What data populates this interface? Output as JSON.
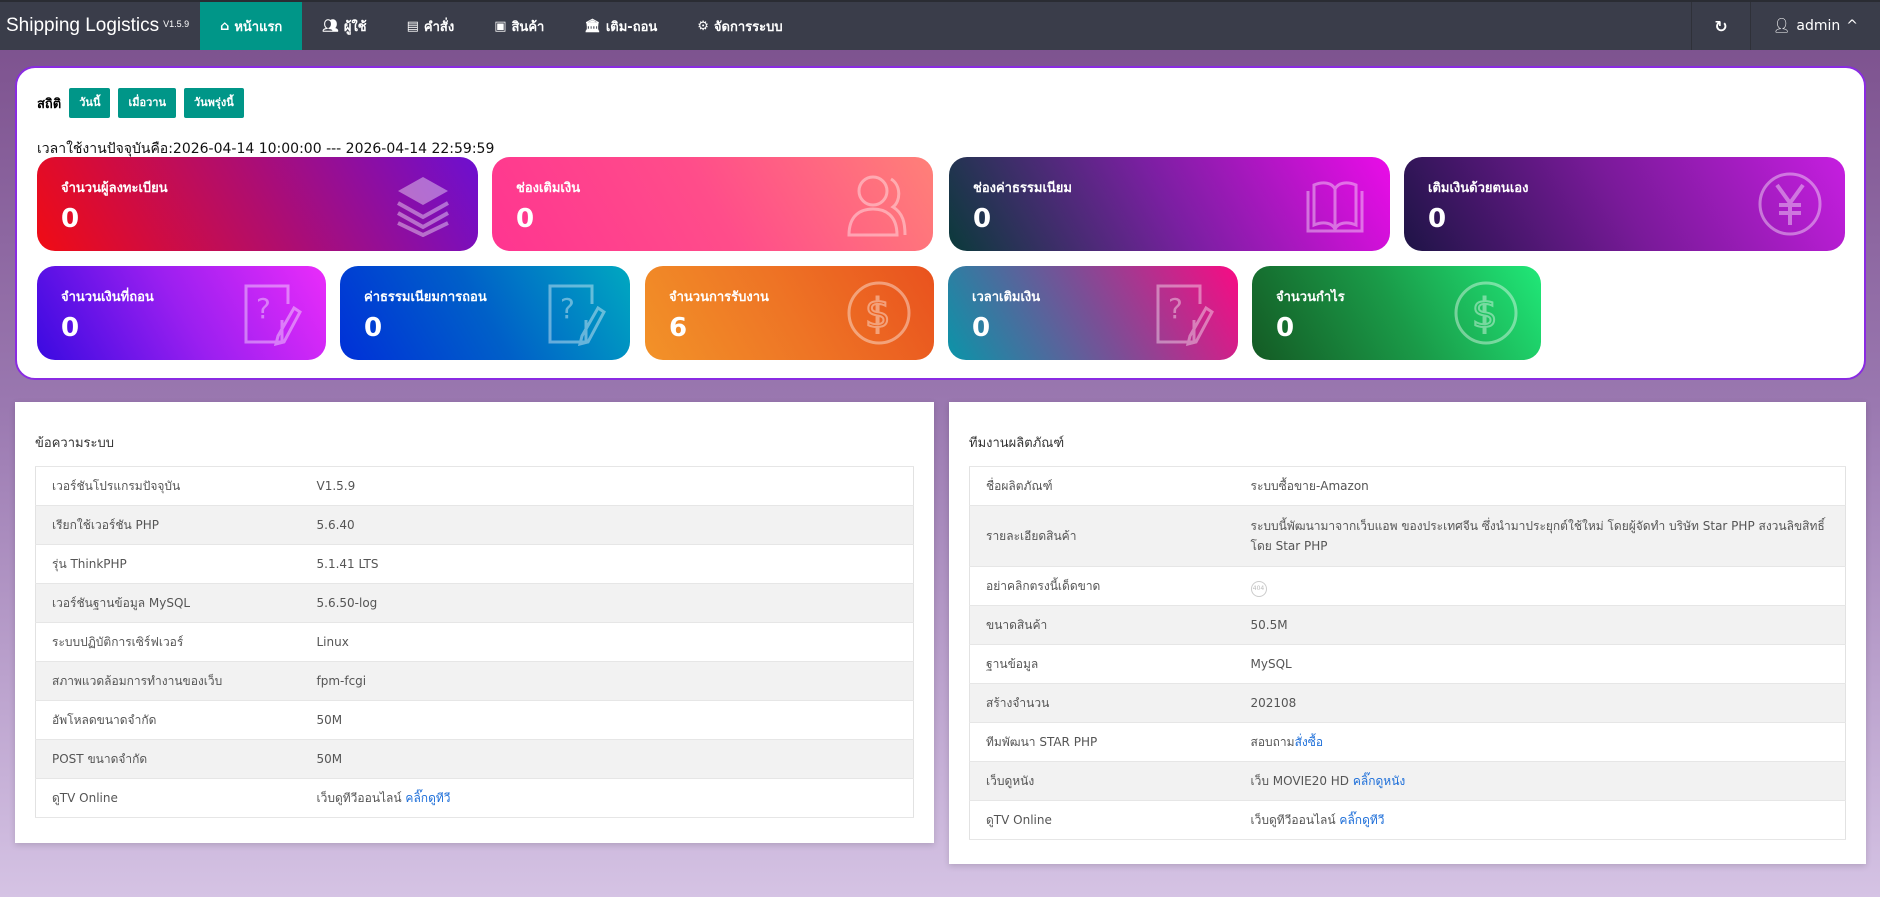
{
  "nav": {
    "brand": "Shipping Logistics",
    "version": "V1.5.9",
    "items": [
      {
        "label": "หน้าแรก",
        "icon": "home-icon"
      },
      {
        "label": "ผู้ใช้",
        "icon": "users-icon"
      },
      {
        "label": "คำสั่ง",
        "icon": "file-icon"
      },
      {
        "label": "สินค้า",
        "icon": "bag-icon"
      },
      {
        "label": "เติม-ถอน",
        "icon": "bank-icon"
      },
      {
        "label": "จัดการระบบ",
        "icon": "gears-icon"
      }
    ],
    "refresh_icon": "refresh-icon",
    "user": "admin"
  },
  "stats": {
    "title": "สถิติ",
    "buttons": [
      "วันนี้",
      "เมื่อวาน",
      "วันพรุ่งนี้"
    ],
    "timeline": "เวลาใช้งานปัจจุบันคือ:2026-04-14 10:00:00 --- 2026-04-14 22:59:59",
    "cards": [
      {
        "label": "จำนวนผู้ลงทะเบียน",
        "value": "0",
        "icon": "layers-icon",
        "colors": [
          "#f00c14",
          "#b00d6e",
          "#6d0fd0"
        ]
      },
      {
        "label": "ช่องเติมเงิน",
        "value": "0",
        "icon": "user-icon",
        "colors": [
          "#ff3590",
          "#ff4d8a",
          "#ff8078"
        ]
      },
      {
        "label": "ช่องค่าธรรมเนียม",
        "value": "0",
        "icon": "book-icon",
        "colors": [
          "#0a3a3a",
          "#7b1fa2",
          "#ea0ce8"
        ]
      },
      {
        "label": "เติมเงินด้วยตนเอง",
        "value": "0",
        "icon": "yen-icon",
        "colors": [
          "#1e1446",
          "#7a1a9a",
          "#c61ee0"
        ]
      },
      {
        "label": "จำนวนเงินที่ถอน",
        "value": "0",
        "icon": "question-edit-icon",
        "colors": [
          "#3a0ae0",
          "#9a1ff0",
          "#ea2cfa"
        ]
      },
      {
        "label": "ค่าธรรมเนียมการถอน",
        "value": "0",
        "icon": "question-edit-icon",
        "colors": [
          "#0030d8",
          "#0060c8",
          "#00a8c0"
        ]
      },
      {
        "label": "จำนวนการรับงาน",
        "value": "6",
        "icon": "dollar-icon",
        "colors": [
          "#f29228",
          "#ee7425",
          "#e9521e"
        ]
      },
      {
        "label": "เวลาเติมเงิน",
        "value": "0",
        "icon": "question-edit-icon",
        "colors": [
          "#0b94a8",
          "#7a4f96",
          "#f80b84"
        ]
      },
      {
        "label": "จำนวนกำไร",
        "value": "0",
        "icon": "dollar-icon",
        "colors": [
          "#145a24",
          "#1a9a48",
          "#20e878"
        ]
      }
    ]
  },
  "system": {
    "title": "ข้อความระบบ",
    "rows": [
      {
        "label": "เวอร์ชันโปรแกรมปัจจุบัน",
        "value": "V1.5.9"
      },
      {
        "label": "เรียกใช้เวอร์ชัน PHP",
        "value": "5.6.40"
      },
      {
        "label": "รุ่น ThinkPHP",
        "value": "5.1.41 LTS"
      },
      {
        "label": "เวอร์ชันฐานข้อมูล MySQL",
        "value": "5.6.50-log"
      },
      {
        "label": "ระบบปฏิบัติการเซิร์ฟเวอร์",
        "value": "Linux"
      },
      {
        "label": "สภาพแวดล้อมการทำงานของเว็บ",
        "value": "fpm-fcgi"
      },
      {
        "label": "อัพโหลดขนาดจำกัด",
        "value": "50M"
      },
      {
        "label": "POST ขนาดจำกัด",
        "value": "50M"
      },
      {
        "label": "ดูTV Online",
        "value": "เว็บดูทีวีออนไลน์ ",
        "link": "คลิ๊กดูทีวี"
      }
    ]
  },
  "product": {
    "title": "ทีมงานผลิตภัณฑ์",
    "rows": [
      {
        "label": "ชื่อผลิตภัณฑ์",
        "value": "ระบบซื้อขาย-Amazon"
      },
      {
        "label": "รายละเอียดสินค้า",
        "value": "ระบบนี้พัฒนามาจากเว็บแอพ ของประเทศจีน ซึ่งนำมาประยุกต์ใช้ใหม่ โดยผู้จัดทำ บริษัท Star PHP สงวนลิขสิทธิ์ โดย Star PHP"
      },
      {
        "label": "อย่าคลิกตรงนี้เด็ดขาด",
        "value": "",
        "badge": "404"
      },
      {
        "label": "ขนาดสินค้า",
        "value": "50.5M"
      },
      {
        "label": "ฐานข้อมูล",
        "value": "MySQL"
      },
      {
        "label": "สร้างจำนวน",
        "value": "202108"
      },
      {
        "label": "ทีมพัฒนา STAR PHP",
        "value": "สอบถาม",
        "link": "สั่งซื้อ"
      },
      {
        "label": "เว็บดูหนัง",
        "value": "เว็บ MOVIE20 HD ",
        "link": "คลิ๊กดูหนัง"
      },
      {
        "label": "ดูTV Online",
        "value": "เว็บดูทีวีออนไลน์ ",
        "link": "คลิ๊กดูทีวี"
      }
    ]
  }
}
